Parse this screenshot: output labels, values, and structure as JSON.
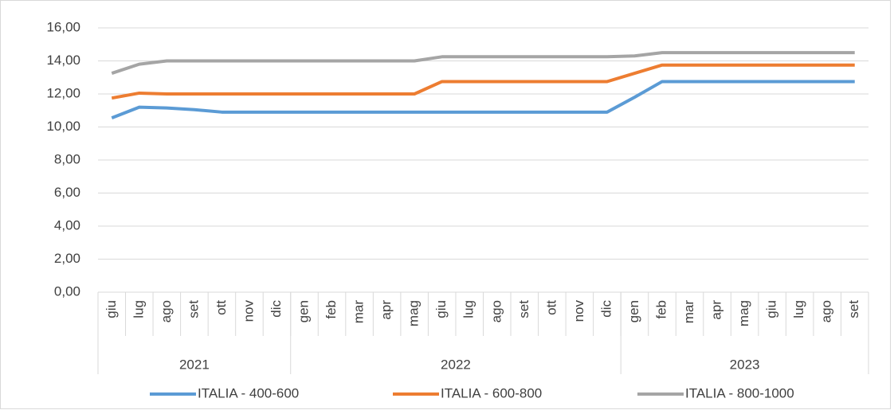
{
  "chart_data": {
    "type": "line",
    "categories": [
      "giu",
      "lug",
      "ago",
      "set",
      "ott",
      "nov",
      "dic",
      "gen",
      "feb",
      "mar",
      "apr",
      "mag",
      "giu",
      "lug",
      "ago",
      "set",
      "ott",
      "nov",
      "dic",
      "gen",
      "feb",
      "mar",
      "apr",
      "mag",
      "giu",
      "lug",
      "ago",
      "set"
    ],
    "groups": [
      {
        "label": "2021",
        "count": 7
      },
      {
        "label": "2022",
        "count": 12
      },
      {
        "label": "2023",
        "count": 9
      }
    ],
    "series": [
      {
        "name": "ITALIA - 400-600",
        "color": "#5b9bd5",
        "values": [
          10.55,
          11.2,
          11.15,
          11.05,
          10.9,
          10.9,
          10.9,
          10.9,
          10.9,
          10.9,
          10.9,
          10.9,
          10.9,
          10.9,
          10.9,
          10.9,
          10.9,
          10.9,
          10.9,
          11.8,
          12.75,
          12.75,
          12.75,
          12.75,
          12.75,
          12.75,
          12.75,
          12.75
        ]
      },
      {
        "name": "ITALIA - 600-800",
        "color": "#ed7d31",
        "values": [
          11.75,
          12.05,
          12.0,
          12.0,
          12.0,
          12.0,
          12.0,
          12.0,
          12.0,
          12.0,
          12.0,
          12.0,
          12.75,
          12.75,
          12.75,
          12.75,
          12.75,
          12.75,
          12.75,
          13.25,
          13.75,
          13.75,
          13.75,
          13.75,
          13.75,
          13.75,
          13.75,
          13.75
        ]
      },
      {
        "name": "ITALIA - 800-1000",
        "color": "#a5a5a5",
        "values": [
          13.25,
          13.8,
          14.0,
          14.0,
          14.0,
          14.0,
          14.0,
          14.0,
          14.0,
          14.0,
          14.0,
          14.0,
          14.25,
          14.25,
          14.25,
          14.25,
          14.25,
          14.25,
          14.25,
          14.3,
          14.5,
          14.5,
          14.5,
          14.5,
          14.5,
          14.5,
          14.5,
          14.5
        ]
      }
    ],
    "ylim": [
      0,
      16
    ],
    "yticks": [
      {
        "value": 0,
        "label": "0,00"
      },
      {
        "value": 2,
        "label": "2,00"
      },
      {
        "value": 4,
        "label": "4,00"
      },
      {
        "value": 6,
        "label": "6,00"
      },
      {
        "value": 8,
        "label": "8,00"
      },
      {
        "value": 10,
        "label": "10,00"
      },
      {
        "value": 12,
        "label": "12,00"
      },
      {
        "value": 14,
        "label": "14,00"
      },
      {
        "value": 16,
        "label": "16,00"
      }
    ],
    "grid": true,
    "legend": "bottom"
  }
}
